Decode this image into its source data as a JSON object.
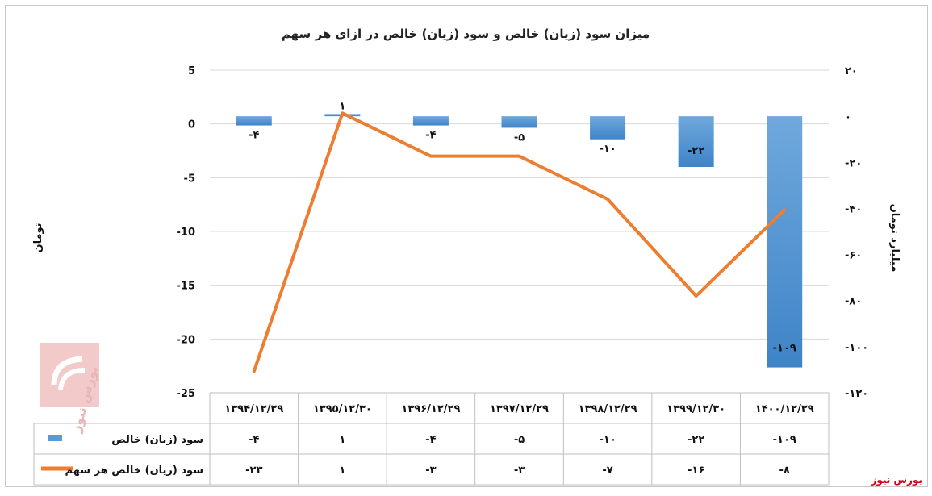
{
  "chart_data": {
    "type": "bar+line",
    "title": "میزان سود (زیان) خالص و سود (زیان) خالص در ازای هر سهم",
    "categories": [
      "۱۳۹۴/۱۲/۲۹",
      "۱۳۹۵/۱۲/۳۰",
      "۱۳۹۶/۱۲/۲۹",
      "۱۳۹۷/۱۲/۲۹",
      "۱۳۹۸/۱۲/۲۹",
      "۱۳۹۹/۱۲/۳۰",
      "۱۴۰۰/۱۲/۲۹"
    ],
    "series": [
      {
        "name": "سود (زیان) خالص",
        "kind": "bar",
        "axis": "right",
        "color": "#5b9bd5",
        "values": [
          -4,
          1,
          -4,
          -5,
          -10,
          -22,
          -109
        ],
        "labels": [
          "-۴",
          "۱",
          "-۴",
          "-۵",
          "-۱۰",
          "-۲۲",
          "-۱۰۹"
        ]
      },
      {
        "name": "سود (زیان) خالص هر سهم",
        "kind": "line",
        "axis": "left",
        "color": "#ed7d31",
        "values": [
          -23,
          1,
          -3,
          -3,
          -7,
          -16,
          -8
        ],
        "labels": [
          "-۲۳",
          "۱",
          "-۳",
          "-۳",
          "-۷",
          "-۱۶",
          "-۸"
        ]
      }
    ],
    "left_axis": {
      "label": "تومان",
      "range": [
        -25,
        5
      ],
      "ticks": [
        5,
        0,
        -5,
        -10,
        -15,
        -20,
        -25
      ],
      "tick_labels": [
        "5",
        "0",
        "-5",
        "-10",
        "-15",
        "-20",
        "-25"
      ]
    },
    "right_axis": {
      "label": "میلیارد تومان",
      "range": [
        -120,
        20
      ],
      "ticks": [
        20,
        0,
        -20,
        -40,
        -60,
        -80,
        -100,
        -120
      ],
      "tick_labels": [
        "۲۰",
        "۰",
        "-۲۰",
        "-۴۰",
        "-۶۰",
        "-۸۰",
        "-۱۰۰",
        "-۱۲۰"
      ]
    },
    "grid": true,
    "legend": "data-table-bottom"
  },
  "source_label": "بورس نیوز"
}
